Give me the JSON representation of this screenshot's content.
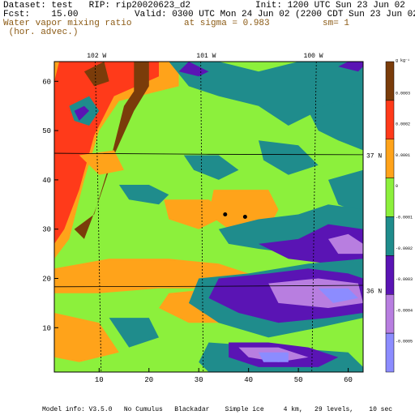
{
  "header": {
    "dataset": "Dataset: test   RIP: rip20020623_d2",
    "init": "Init: 1200 UTC Sun 23 Jun 02",
    "fcst": "Fcst:    15.00",
    "valid": "Valid: 0300 UTC Mon 24 Jun 02 (2200 CDT Sun 23 Jun 02)",
    "field_line1": "Water vapor mixing ratio",
    "field_line2": " (hor. advec.)",
    "sigma": "at sigma = 0.983",
    "sm": "sm= 1"
  },
  "footer": "Model info: V3.5.0   No Cumulus   Blackadar    Simple ice     4 km,   29 levels,    10 sec",
  "colors": {
    "brown": "#7a3c0a",
    "red": "#ff3a1a",
    "orange": "#ffa31a",
    "green": "#8cf03c",
    "teal": "#1f8c8c",
    "purple": "#5a14b4",
    "lavender": "#b87ee0",
    "blue": "#8c8cff"
  },
  "chart_data": {
    "type": "heatmap",
    "x": {
      "ticks": [
        10,
        20,
        30,
        40,
        50,
        60
      ],
      "range": [
        1,
        63
      ]
    },
    "y": {
      "ticks": [
        10,
        20,
        30,
        40,
        50,
        60
      ],
      "range": [
        1,
        64
      ]
    },
    "top_labels": [
      {
        "text": "102 W",
        "x": 9.5
      },
      {
        "text": "101 W",
        "x": 31.5
      },
      {
        "text": "100 W",
        "x": 53
      }
    ],
    "right_labels": [
      {
        "text": "37 N",
        "y": 45
      },
      {
        "text": "36 N",
        "y": 17.5
      }
    ],
    "colorbar": {
      "unit": "g kg⁻¹",
      "labels": [
        "0.0003",
        "0.0002",
        "0.0001",
        "0",
        "-0.0001",
        "-0.0002",
        "-0.0003",
        "-0.0004",
        "-0.0005"
      ],
      "levels": [
        "brown",
        "red",
        "orange",
        "green",
        "teal",
        "purple",
        "lavender",
        "blue"
      ]
    },
    "meridians": [
      [
        [
          9.2,
          64
        ],
        [
          9.8,
          36
        ],
        [
          10.4,
          1
        ]
      ],
      [
        [
          30.4,
          64
        ],
        [
          30.6,
          36
        ],
        [
          30.9,
          1
        ]
      ],
      [
        [
          53.6,
          64
        ],
        [
          53.2,
          36
        ],
        [
          52.7,
          1
        ]
      ]
    ],
    "parallels": [
      [
        [
          1,
          45.4
        ],
        [
          32,
          45.2
        ],
        [
          63,
          45.1
        ]
      ],
      [
        [
          1,
          18.3
        ],
        [
          32,
          18.4
        ],
        [
          63,
          18.6
        ]
      ]
    ],
    "dots": [
      [
        35.3,
        33
      ],
      [
        39.3,
        32.5
      ]
    ],
    "regions": [
      {
        "level": "orange",
        "pts": [
          [
            1,
            64
          ],
          [
            26,
            64
          ],
          [
            26,
            59
          ],
          [
            14,
            56
          ],
          [
            10,
            50
          ],
          [
            7,
            40
          ],
          [
            4,
            28
          ],
          [
            1,
            24
          ]
        ]
      },
      {
        "level": "red",
        "pts": [
          [
            2,
            64
          ],
          [
            22,
            64
          ],
          [
            22,
            61
          ],
          [
            13,
            57
          ],
          [
            9,
            49
          ],
          [
            6,
            38
          ],
          [
            3,
            30
          ],
          [
            1,
            27
          ],
          [
            1,
            60
          ]
        ]
      },
      {
        "level": "brown",
        "pts": [
          [
            5,
            30
          ],
          [
            9,
            33
          ],
          [
            12,
            43
          ],
          [
            14,
            51
          ],
          [
            15,
            55
          ],
          [
            17,
            58
          ],
          [
            17,
            64
          ],
          [
            20,
            64
          ],
          [
            20,
            59
          ],
          [
            17,
            54
          ],
          [
            13,
            45
          ],
          [
            10,
            36
          ],
          [
            7,
            28
          ]
        ]
      },
      {
        "level": "brown",
        "pts": [
          [
            7,
            62
          ],
          [
            11,
            64
          ],
          [
            12,
            60
          ],
          [
            9,
            59
          ]
        ]
      },
      {
        "level": "teal",
        "pts": [
          [
            4,
            55
          ],
          [
            8,
            57
          ],
          [
            10,
            54
          ],
          [
            8,
            51
          ],
          [
            5,
            52
          ]
        ]
      },
      {
        "level": "purple",
        "pts": [
          [
            5,
            54
          ],
          [
            7,
            55
          ],
          [
            8,
            54
          ],
          [
            6,
            52
          ]
        ]
      },
      {
        "level": "teal",
        "pts": [
          [
            24,
            64
          ],
          [
            34,
            64
          ],
          [
            42,
            62
          ],
          [
            50,
            64
          ],
          [
            63,
            64
          ],
          [
            63,
            53
          ],
          [
            56,
            55
          ],
          [
            48,
            51
          ],
          [
            42,
            55
          ],
          [
            34,
            57
          ],
          [
            28,
            59
          ]
        ]
      },
      {
        "level": "teal",
        "pts": [
          [
            52,
            54
          ],
          [
            58,
            56
          ],
          [
            63,
            55
          ],
          [
            63,
            46
          ],
          [
            58,
            48
          ],
          [
            54,
            50
          ]
        ]
      },
      {
        "level": "purple",
        "pts": [
          [
            26,
            62
          ],
          [
            30,
            61
          ],
          [
            32,
            62
          ],
          [
            28,
            64
          ]
        ]
      },
      {
        "level": "purple",
        "pts": [
          [
            58,
            63
          ],
          [
            62,
            62
          ],
          [
            63,
            63
          ],
          [
            63,
            64
          ],
          [
            60,
            64
          ]
        ]
      },
      {
        "level": "teal",
        "pts": [
          [
            14,
            39
          ],
          [
            20,
            39
          ],
          [
            24,
            37
          ],
          [
            22,
            35
          ],
          [
            16,
            36
          ]
        ]
      },
      {
        "level": "teal",
        "pts": [
          [
            27,
            45
          ],
          [
            34,
            45
          ],
          [
            38,
            42
          ],
          [
            34,
            40
          ],
          [
            29,
            42
          ]
        ]
      },
      {
        "level": "teal",
        "pts": [
          [
            42,
            48
          ],
          [
            50,
            47
          ],
          [
            54,
            43
          ],
          [
            48,
            41
          ],
          [
            43,
            44
          ]
        ]
      },
      {
        "level": "teal",
        "pts": [
          [
            56,
            40
          ],
          [
            63,
            42
          ],
          [
            63,
            33
          ],
          [
            58,
            35
          ]
        ]
      },
      {
        "level": "orange",
        "pts": [
          [
            23,
            36
          ],
          [
            32,
            36
          ],
          [
            36,
            33
          ],
          [
            30,
            30
          ],
          [
            24,
            32
          ]
        ]
      },
      {
        "level": "orange",
        "pts": [
          [
            33,
            38
          ],
          [
            44,
            38
          ],
          [
            46,
            34
          ],
          [
            44,
            30
          ],
          [
            36,
            30
          ],
          [
            32,
            33
          ]
        ]
      },
      {
        "level": "orange",
        "pts": [
          [
            6,
            45
          ],
          [
            13,
            46
          ],
          [
            15,
            42
          ],
          [
            10,
            41
          ]
        ]
      },
      {
        "level": "teal",
        "pts": [
          [
            34,
            30
          ],
          [
            42,
            32
          ],
          [
            50,
            33
          ],
          [
            56,
            35
          ],
          [
            63,
            34
          ],
          [
            63,
            24
          ],
          [
            58,
            22
          ],
          [
            50,
            25
          ],
          [
            42,
            26
          ],
          [
            36,
            27
          ]
        ]
      },
      {
        "level": "purple",
        "pts": [
          [
            42,
            27
          ],
          [
            50,
            28
          ],
          [
            56,
            31
          ],
          [
            63,
            30
          ],
          [
            63,
            24
          ],
          [
            56,
            23
          ],
          [
            48,
            24
          ]
        ]
      },
      {
        "level": "lavender",
        "pts": [
          [
            56,
            28
          ],
          [
            60,
            29
          ],
          [
            63,
            27
          ],
          [
            63,
            25
          ],
          [
            58,
            25
          ]
        ]
      },
      {
        "level": "orange",
        "pts": [
          [
            1,
            22
          ],
          [
            12,
            24
          ],
          [
            24,
            24
          ],
          [
            34,
            23
          ],
          [
            40,
            21
          ],
          [
            34,
            18
          ],
          [
            22,
            18
          ],
          [
            10,
            17
          ],
          [
            1,
            17
          ]
        ]
      },
      {
        "level": "orange",
        "pts": [
          [
            24,
            17
          ],
          [
            34,
            18
          ],
          [
            42,
            15
          ],
          [
            38,
            11
          ],
          [
            28,
            11
          ],
          [
            22,
            14
          ]
        ]
      },
      {
        "level": "orange",
        "pts": [
          [
            1,
            13
          ],
          [
            10,
            11
          ],
          [
            14,
            5
          ],
          [
            6,
            3
          ],
          [
            1,
            4
          ]
        ]
      },
      {
        "level": "teal",
        "pts": [
          [
            12,
            12
          ],
          [
            20,
            12
          ],
          [
            22,
            8
          ],
          [
            16,
            6
          ]
        ]
      },
      {
        "level": "teal",
        "pts": [
          [
            30,
            20
          ],
          [
            40,
            21
          ],
          [
            52,
            23
          ],
          [
            63,
            24
          ],
          [
            63,
            12
          ],
          [
            54,
            10
          ],
          [
            44,
            8
          ],
          [
            34,
            11
          ],
          [
            28,
            15
          ]
        ]
      },
      {
        "level": "teal",
        "pts": [
          [
            32,
            7
          ],
          [
            46,
            6
          ],
          [
            60,
            5
          ],
          [
            63,
            2
          ],
          [
            63,
            1
          ],
          [
            32,
            1
          ],
          [
            30,
            3
          ]
        ]
      },
      {
        "level": "purple",
        "pts": [
          [
            34,
            20
          ],
          [
            44,
            21
          ],
          [
            52,
            22
          ],
          [
            60,
            21
          ],
          [
            63,
            20
          ],
          [
            63,
            13
          ],
          [
            56,
            12
          ],
          [
            46,
            11
          ],
          [
            38,
            13
          ],
          [
            32,
            16
          ]
        ]
      },
      {
        "level": "purple",
        "pts": [
          [
            36,
            7
          ],
          [
            44,
            7
          ],
          [
            52,
            6
          ],
          [
            58,
            4
          ],
          [
            54,
            2
          ],
          [
            42,
            2
          ],
          [
            36,
            4
          ]
        ]
      },
      {
        "level": "lavender",
        "pts": [
          [
            44,
            19
          ],
          [
            54,
            20
          ],
          [
            62,
            19
          ],
          [
            63,
            15
          ],
          [
            56,
            14
          ],
          [
            46,
            15
          ]
        ]
      },
      {
        "level": "lavender",
        "pts": [
          [
            38,
            6
          ],
          [
            46,
            6
          ],
          [
            52,
            4
          ],
          [
            46,
            3
          ],
          [
            40,
            4
          ]
        ]
      },
      {
        "level": "blue",
        "pts": [
          [
            54,
            18
          ],
          [
            60,
            18
          ],
          [
            62,
            16
          ],
          [
            57,
            15
          ]
        ]
      },
      {
        "level": "blue",
        "pts": [
          [
            42,
            5
          ],
          [
            48,
            5
          ],
          [
            48,
            3
          ],
          [
            43,
            3
          ]
        ]
      }
    ]
  }
}
